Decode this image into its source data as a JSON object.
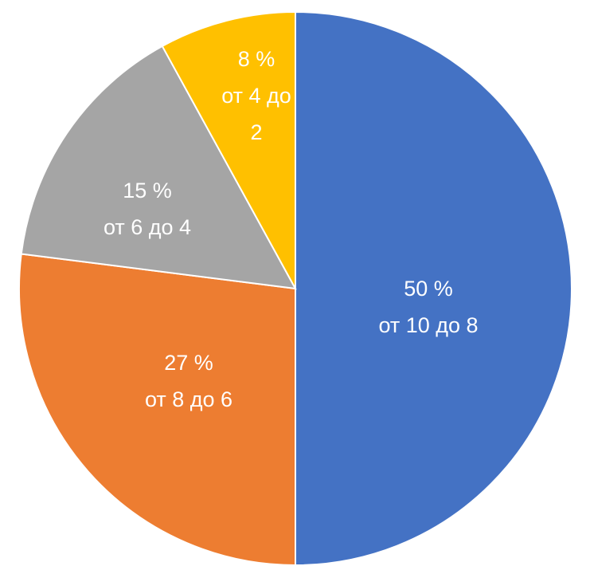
{
  "chart_data": {
    "type": "pie",
    "categories": [
      "от 10 до 8",
      "от 8 до 6",
      "от 6 до 4",
      "от 4 до 2"
    ],
    "values": [
      50,
      27,
      15,
      8
    ],
    "value_labels": [
      "50 %",
      "27 %",
      "15 %",
      "8 %"
    ],
    "colors": [
      "#4472c4",
      "#ed7d31",
      "#a5a5a5",
      "#ffc000"
    ]
  }
}
